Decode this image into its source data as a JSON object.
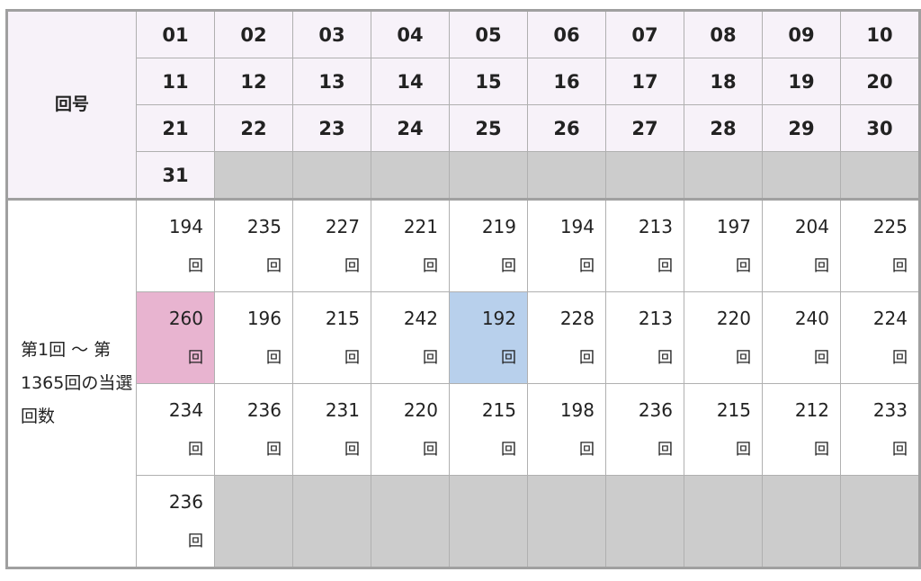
{
  "header_label": "回号",
  "body_label": "第1回 ～ 第1365回の当選回数",
  "unit": "回",
  "numbers": [
    "01",
    "02",
    "03",
    "04",
    "05",
    "06",
    "07",
    "08",
    "09",
    "10",
    "11",
    "12",
    "13",
    "14",
    "15",
    "16",
    "17",
    "18",
    "19",
    "20",
    "21",
    "22",
    "23",
    "24",
    "25",
    "26",
    "27",
    "28",
    "29",
    "30",
    "31"
  ],
  "counts": [
    194,
    235,
    227,
    221,
    219,
    194,
    213,
    197,
    204,
    225,
    260,
    196,
    215,
    242,
    192,
    228,
    213,
    220,
    240,
    224,
    234,
    236,
    231,
    220,
    215,
    198,
    236,
    215,
    212,
    233,
    236
  ],
  "highlight": {
    "max_index": 10,
    "min_index": 14,
    "max_color": "#e8b4d0",
    "min_color": "#b8d0ec",
    "empty_color": "#cccccc",
    "header_color": "#f7f2f9"
  }
}
